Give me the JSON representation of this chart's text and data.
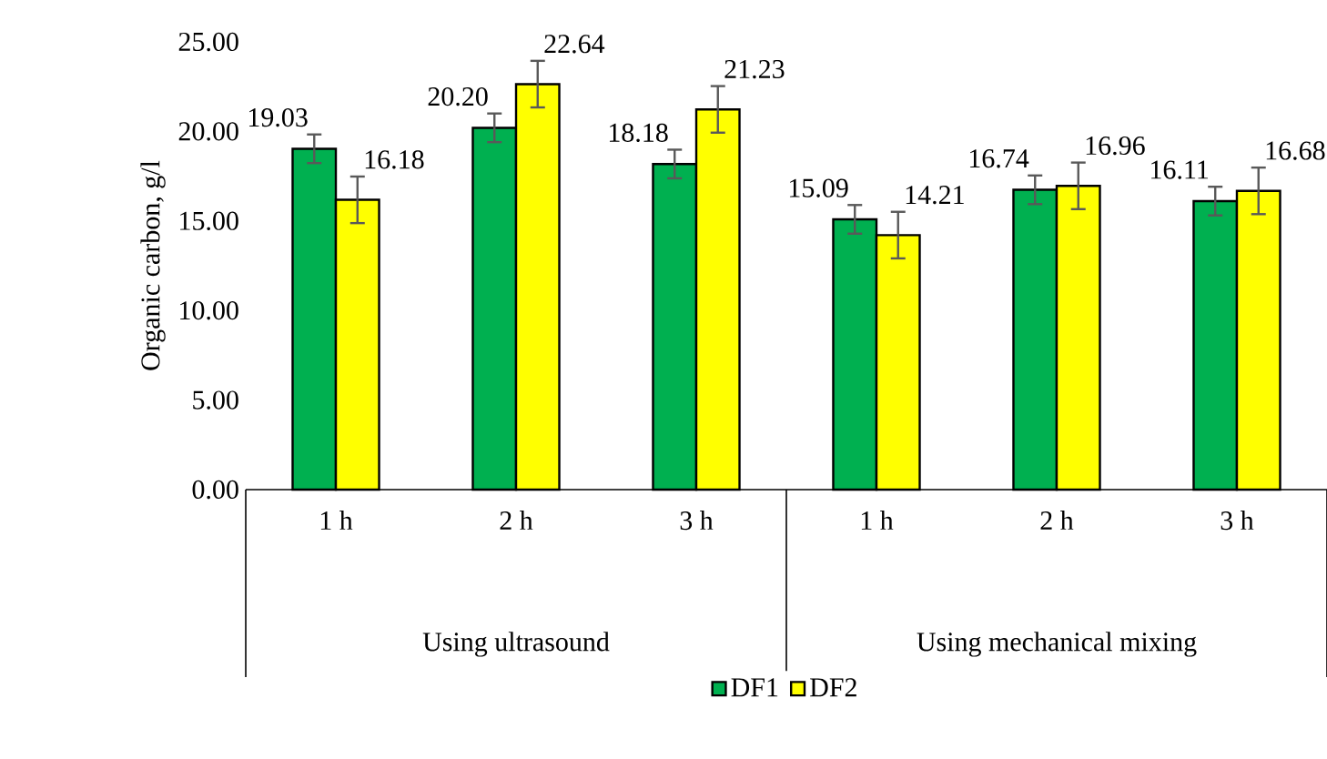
{
  "chart_data": {
    "type": "bar",
    "ylabel": "Organic carbon, g/l",
    "categories": [
      "1 h",
      "2 h",
      "3 h",
      "1 h",
      "2 h",
      "3 h"
    ],
    "annotations": [
      "Using ultrasound",
      "Using mechanical mixing"
    ],
    "series": [
      {
        "name": "DF1",
        "color": "#00b050",
        "values": [
          19.03,
          20.2,
          18.18,
          15.09,
          16.74,
          16.11
        ],
        "value_labels": [
          "19.03",
          "20.20",
          "18.18",
          "15.09",
          "16.74",
          "16.11"
        ],
        "errors": [
          0.8,
          0.8,
          0.8,
          0.8,
          0.8,
          0.8
        ]
      },
      {
        "name": "DF2",
        "color": "#ffff00",
        "values": [
          16.18,
          22.64,
          21.23,
          14.21,
          16.96,
          16.68
        ],
        "value_labels": [
          "16.18",
          "22.64",
          "21.23",
          "14.21",
          "16.96",
          "16.68"
        ],
        "errors": [
          1.3,
          1.3,
          1.3,
          1.3,
          1.3,
          1.3
        ]
      }
    ],
    "ylim": [
      0,
      25
    ],
    "yticks": [
      {
        "value": 0,
        "label": "0.00"
      },
      {
        "value": 5,
        "label": "5.00"
      },
      {
        "value": 10,
        "label": "10.00"
      },
      {
        "value": 15,
        "label": "15.00"
      },
      {
        "value": 20,
        "label": "20.00"
      },
      {
        "value": 25,
        "label": "25.00"
      }
    ],
    "grid": false,
    "legend": "bottom"
  }
}
